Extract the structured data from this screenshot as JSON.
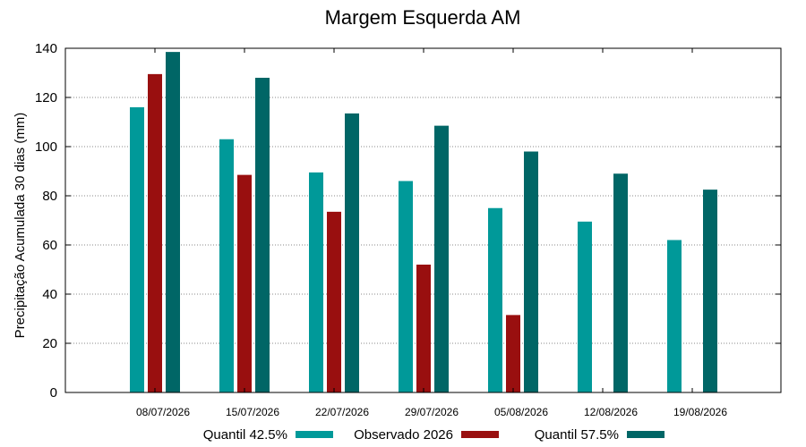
{
  "chart_data": {
    "type": "bar",
    "title": "Margem Esquerda AM",
    "xlabel": "",
    "ylabel": "Precipitação Acumulada 30 dias (mm)",
    "ylim": [
      0,
      140
    ],
    "yticks": [
      0,
      20,
      40,
      60,
      80,
      100,
      120,
      140
    ],
    "grid": true,
    "legend_position": "bottom",
    "categories": [
      "08/07/2026",
      "15/07/2026",
      "22/07/2026",
      "29/07/2026",
      "05/08/2026",
      "12/08/2026",
      "19/08/2026"
    ],
    "series": [
      {
        "name": "Quantil 42.5%",
        "color": "#009999",
        "values": [
          116,
          103,
          89.5,
          86,
          75,
          69.5,
          62
        ]
      },
      {
        "name": "Observado 2026",
        "color": "#990f0f",
        "values": [
          129.5,
          88.5,
          73.5,
          52,
          31.5,
          null,
          null
        ]
      },
      {
        "name": "Quantil 57.5%",
        "color": "#006666",
        "values": [
          138.5,
          128,
          113.5,
          108.5,
          98,
          89,
          82.5
        ]
      }
    ]
  }
}
